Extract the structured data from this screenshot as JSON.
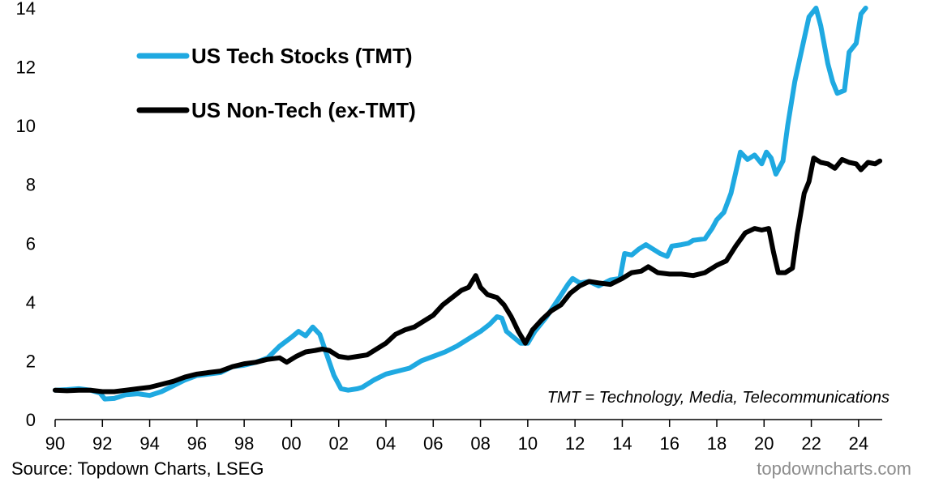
{
  "chart_data": {
    "type": "line",
    "title": "",
    "xlabel": "",
    "ylabel": "",
    "xlim": [
      1990,
      2025
    ],
    "ylim": [
      0,
      14
    ],
    "y_ticks": [
      0,
      2,
      4,
      6,
      8,
      10,
      12,
      14
    ],
    "x_ticks": [
      {
        "value": 1990,
        "label": "90"
      },
      {
        "value": 1992,
        "label": "92"
      },
      {
        "value": 1994,
        "label": "94"
      },
      {
        "value": 1996,
        "label": "96"
      },
      {
        "value": 1998,
        "label": "98"
      },
      {
        "value": 2000,
        "label": "00"
      },
      {
        "value": 2002,
        "label": "02"
      },
      {
        "value": 2004,
        "label": "04"
      },
      {
        "value": 2006,
        "label": "06"
      },
      {
        "value": 2008,
        "label": "08"
      },
      {
        "value": 2010,
        "label": "10"
      },
      {
        "value": 2012,
        "label": "12"
      },
      {
        "value": 2014,
        "label": "14"
      },
      {
        "value": 2016,
        "label": "16"
      },
      {
        "value": 2018,
        "label": "18"
      },
      {
        "value": 2020,
        "label": "20"
      },
      {
        "value": 2022,
        "label": "22"
      },
      {
        "value": 2024,
        "label": "24"
      }
    ],
    "grid": false,
    "legend_position": "top-left",
    "annotation": "TMT = Technology, Media, Telecommunications",
    "series": [
      {
        "name": "US Tech Stocks (TMT)",
        "color": "#1fa9e1",
        "points": [
          [
            1990.0,
            1.0
          ],
          [
            1990.5,
            1.02
          ],
          [
            1991.0,
            1.05
          ],
          [
            1991.5,
            1.0
          ],
          [
            1991.9,
            0.9
          ],
          [
            1992.1,
            0.7
          ],
          [
            1992.5,
            0.72
          ],
          [
            1993.0,
            0.85
          ],
          [
            1993.5,
            0.88
          ],
          [
            1994.0,
            0.82
          ],
          [
            1994.5,
            0.95
          ],
          [
            1995.0,
            1.15
          ],
          [
            1995.5,
            1.35
          ],
          [
            1996.0,
            1.5
          ],
          [
            1996.5,
            1.55
          ],
          [
            1997.0,
            1.6
          ],
          [
            1997.5,
            1.8
          ],
          [
            1998.0,
            1.85
          ],
          [
            1998.5,
            1.95
          ],
          [
            1999.0,
            2.1
          ],
          [
            1999.5,
            2.5
          ],
          [
            2000.0,
            2.8
          ],
          [
            2000.3,
            3.0
          ],
          [
            2000.6,
            2.85
          ],
          [
            2000.9,
            3.15
          ],
          [
            2001.2,
            2.9
          ],
          [
            2001.5,
            2.2
          ],
          [
            2001.8,
            1.5
          ],
          [
            2002.1,
            1.05
          ],
          [
            2002.4,
            1.0
          ],
          [
            2002.8,
            1.05
          ],
          [
            2003.0,
            1.1
          ],
          [
            2003.5,
            1.35
          ],
          [
            2004.0,
            1.55
          ],
          [
            2004.5,
            1.65
          ],
          [
            2005.0,
            1.75
          ],
          [
            2005.5,
            2.0
          ],
          [
            2006.0,
            2.15
          ],
          [
            2006.5,
            2.3
          ],
          [
            2007.0,
            2.5
          ],
          [
            2007.5,
            2.75
          ],
          [
            2008.0,
            3.0
          ],
          [
            2008.4,
            3.25
          ],
          [
            2008.7,
            3.5
          ],
          [
            2008.9,
            3.45
          ],
          [
            2009.1,
            3.0
          ],
          [
            2009.4,
            2.8
          ],
          [
            2009.7,
            2.6
          ],
          [
            2010.0,
            2.6
          ],
          [
            2010.3,
            3.0
          ],
          [
            2010.8,
            3.5
          ],
          [
            2011.3,
            4.1
          ],
          [
            2011.7,
            4.6
          ],
          [
            2011.9,
            4.8
          ],
          [
            2012.2,
            4.65
          ],
          [
            2012.6,
            4.7
          ],
          [
            2013.0,
            4.55
          ],
          [
            2013.5,
            4.75
          ],
          [
            2013.9,
            4.8
          ],
          [
            2014.1,
            5.65
          ],
          [
            2014.4,
            5.6
          ],
          [
            2014.7,
            5.8
          ],
          [
            2015.0,
            5.95
          ],
          [
            2015.3,
            5.8
          ],
          [
            2015.6,
            5.65
          ],
          [
            2015.9,
            5.55
          ],
          [
            2016.1,
            5.9
          ],
          [
            2016.5,
            5.95
          ],
          [
            2016.8,
            6.0
          ],
          [
            2017.0,
            6.1
          ],
          [
            2017.5,
            6.15
          ],
          [
            2017.8,
            6.5
          ],
          [
            2018.0,
            6.8
          ],
          [
            2018.3,
            7.05
          ],
          [
            2018.6,
            7.7
          ],
          [
            2018.8,
            8.4
          ],
          [
            2019.0,
            9.1
          ],
          [
            2019.3,
            8.85
          ],
          [
            2019.6,
            9.0
          ],
          [
            2019.9,
            8.7
          ],
          [
            2020.1,
            9.1
          ],
          [
            2020.3,
            8.9
          ],
          [
            2020.5,
            8.35
          ],
          [
            2020.8,
            8.8
          ],
          [
            2021.0,
            10.0
          ],
          [
            2021.3,
            11.5
          ],
          [
            2021.6,
            12.6
          ],
          [
            2021.9,
            13.7
          ],
          [
            2022.2,
            14.0
          ],
          [
            2022.4,
            13.4
          ],
          [
            2022.7,
            12.1
          ],
          [
            2022.9,
            11.5
          ],
          [
            2023.1,
            11.1
          ],
          [
            2023.4,
            11.2
          ],
          [
            2023.6,
            12.5
          ],
          [
            2023.9,
            12.8
          ],
          [
            2024.1,
            13.8
          ],
          [
            2024.3,
            14.0
          ]
        ]
      },
      {
        "name": "US Non-Tech (ex-TMT)",
        "color": "#000000",
        "points": [
          [
            1990.0,
            1.0
          ],
          [
            1990.5,
            0.98
          ],
          [
            1991.0,
            1.0
          ],
          [
            1991.5,
            1.0
          ],
          [
            1992.0,
            0.95
          ],
          [
            1992.5,
            0.95
          ],
          [
            1993.0,
            1.0
          ],
          [
            1993.5,
            1.05
          ],
          [
            1994.0,
            1.1
          ],
          [
            1994.5,
            1.2
          ],
          [
            1995.0,
            1.3
          ],
          [
            1995.5,
            1.45
          ],
          [
            1996.0,
            1.55
          ],
          [
            1996.5,
            1.6
          ],
          [
            1997.0,
            1.65
          ],
          [
            1997.5,
            1.8
          ],
          [
            1998.0,
            1.9
          ],
          [
            1998.5,
            1.95
          ],
          [
            1999.0,
            2.05
          ],
          [
            1999.5,
            2.1
          ],
          [
            1999.8,
            1.95
          ],
          [
            2000.2,
            2.15
          ],
          [
            2000.6,
            2.3
          ],
          [
            2001.0,
            2.35
          ],
          [
            2001.3,
            2.4
          ],
          [
            2001.6,
            2.35
          ],
          [
            2002.0,
            2.15
          ],
          [
            2002.4,
            2.1
          ],
          [
            2002.8,
            2.15
          ],
          [
            2003.2,
            2.2
          ],
          [
            2003.6,
            2.4
          ],
          [
            2004.0,
            2.6
          ],
          [
            2004.4,
            2.9
          ],
          [
            2004.8,
            3.05
          ],
          [
            2005.2,
            3.15
          ],
          [
            2005.6,
            3.35
          ],
          [
            2006.0,
            3.55
          ],
          [
            2006.4,
            3.9
          ],
          [
            2006.8,
            4.15
          ],
          [
            2007.2,
            4.4
          ],
          [
            2007.5,
            4.5
          ],
          [
            2007.8,
            4.9
          ],
          [
            2008.0,
            4.5
          ],
          [
            2008.3,
            4.25
          ],
          [
            2008.7,
            4.15
          ],
          [
            2009.0,
            3.9
          ],
          [
            2009.3,
            3.5
          ],
          [
            2009.6,
            3.0
          ],
          [
            2009.9,
            2.6
          ],
          [
            2010.2,
            3.05
          ],
          [
            2010.6,
            3.4
          ],
          [
            2011.0,
            3.7
          ],
          [
            2011.4,
            3.9
          ],
          [
            2011.8,
            4.3
          ],
          [
            2012.2,
            4.55
          ],
          [
            2012.6,
            4.7
          ],
          [
            2013.0,
            4.65
          ],
          [
            2013.5,
            4.6
          ],
          [
            2014.0,
            4.8
          ],
          [
            2014.4,
            5.0
          ],
          [
            2014.8,
            5.05
          ],
          [
            2015.1,
            5.2
          ],
          [
            2015.5,
            5.0
          ],
          [
            2016.0,
            4.95
          ],
          [
            2016.5,
            4.95
          ],
          [
            2017.0,
            4.9
          ],
          [
            2017.5,
            5.0
          ],
          [
            2018.0,
            5.25
          ],
          [
            2018.4,
            5.4
          ],
          [
            2018.8,
            5.9
          ],
          [
            2019.2,
            6.35
          ],
          [
            2019.6,
            6.5
          ],
          [
            2019.9,
            6.45
          ],
          [
            2020.2,
            6.5
          ],
          [
            2020.4,
            5.7
          ],
          [
            2020.6,
            5.0
          ],
          [
            2020.9,
            5.0
          ],
          [
            2021.2,
            5.15
          ],
          [
            2021.4,
            6.3
          ],
          [
            2021.7,
            7.7
          ],
          [
            2021.9,
            8.1
          ],
          [
            2022.1,
            8.9
          ],
          [
            2022.4,
            8.75
          ],
          [
            2022.7,
            8.7
          ],
          [
            2023.0,
            8.55
          ],
          [
            2023.3,
            8.85
          ],
          [
            2023.6,
            8.75
          ],
          [
            2023.9,
            8.7
          ],
          [
            2024.1,
            8.5
          ],
          [
            2024.4,
            8.75
          ],
          [
            2024.7,
            8.7
          ],
          [
            2024.9,
            8.8
          ]
        ]
      }
    ]
  },
  "footer": {
    "source": "Source: Topdown Charts, LSEG",
    "watermark": "topdowncharts.com"
  }
}
